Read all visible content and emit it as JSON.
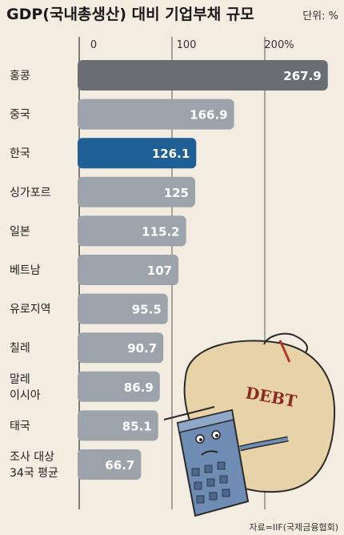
{
  "chart_data": {
    "type": "bar",
    "orientation": "horizontal",
    "title": "GDP(국내총생산) 대비 기업부채 규모",
    "unit_label": "단위: %",
    "categories": [
      [
        "홍콩"
      ],
      [
        "중국"
      ],
      [
        "한국"
      ],
      [
        "싱가포르"
      ],
      [
        "일본"
      ],
      [
        "베트남"
      ],
      [
        "유로지역"
      ],
      [
        "칠레"
      ],
      [
        "말레",
        "이시아"
      ],
      [
        "태국"
      ],
      [
        "조사 대상",
        "34국 평균"
      ]
    ],
    "values": [
      267.9,
      166.9,
      126.1,
      125,
      115.2,
      107,
      95.5,
      90.7,
      86.9,
      85.1,
      66.7
    ],
    "value_labels": [
      "267.9",
      "166.9",
      "126.1",
      "125",
      "115.2",
      "107",
      "95.5",
      "90.7",
      "86.9",
      "85.1",
      "66.7"
    ],
    "xlim": [
      0,
      270
    ],
    "xticks": [
      0,
      100,
      200
    ],
    "xtick_labels": [
      "0",
      "100",
      "200%"
    ],
    "highlight_index": 2,
    "colors": {
      "default": "#9da3ab",
      "first": "#6a6d72",
      "highlight": "#1e5f96",
      "background": "#f3ece1",
      "grid": "#333333"
    },
    "source": "자료=IIF(국제금융협회)",
    "illustration_text": "DEBT"
  }
}
